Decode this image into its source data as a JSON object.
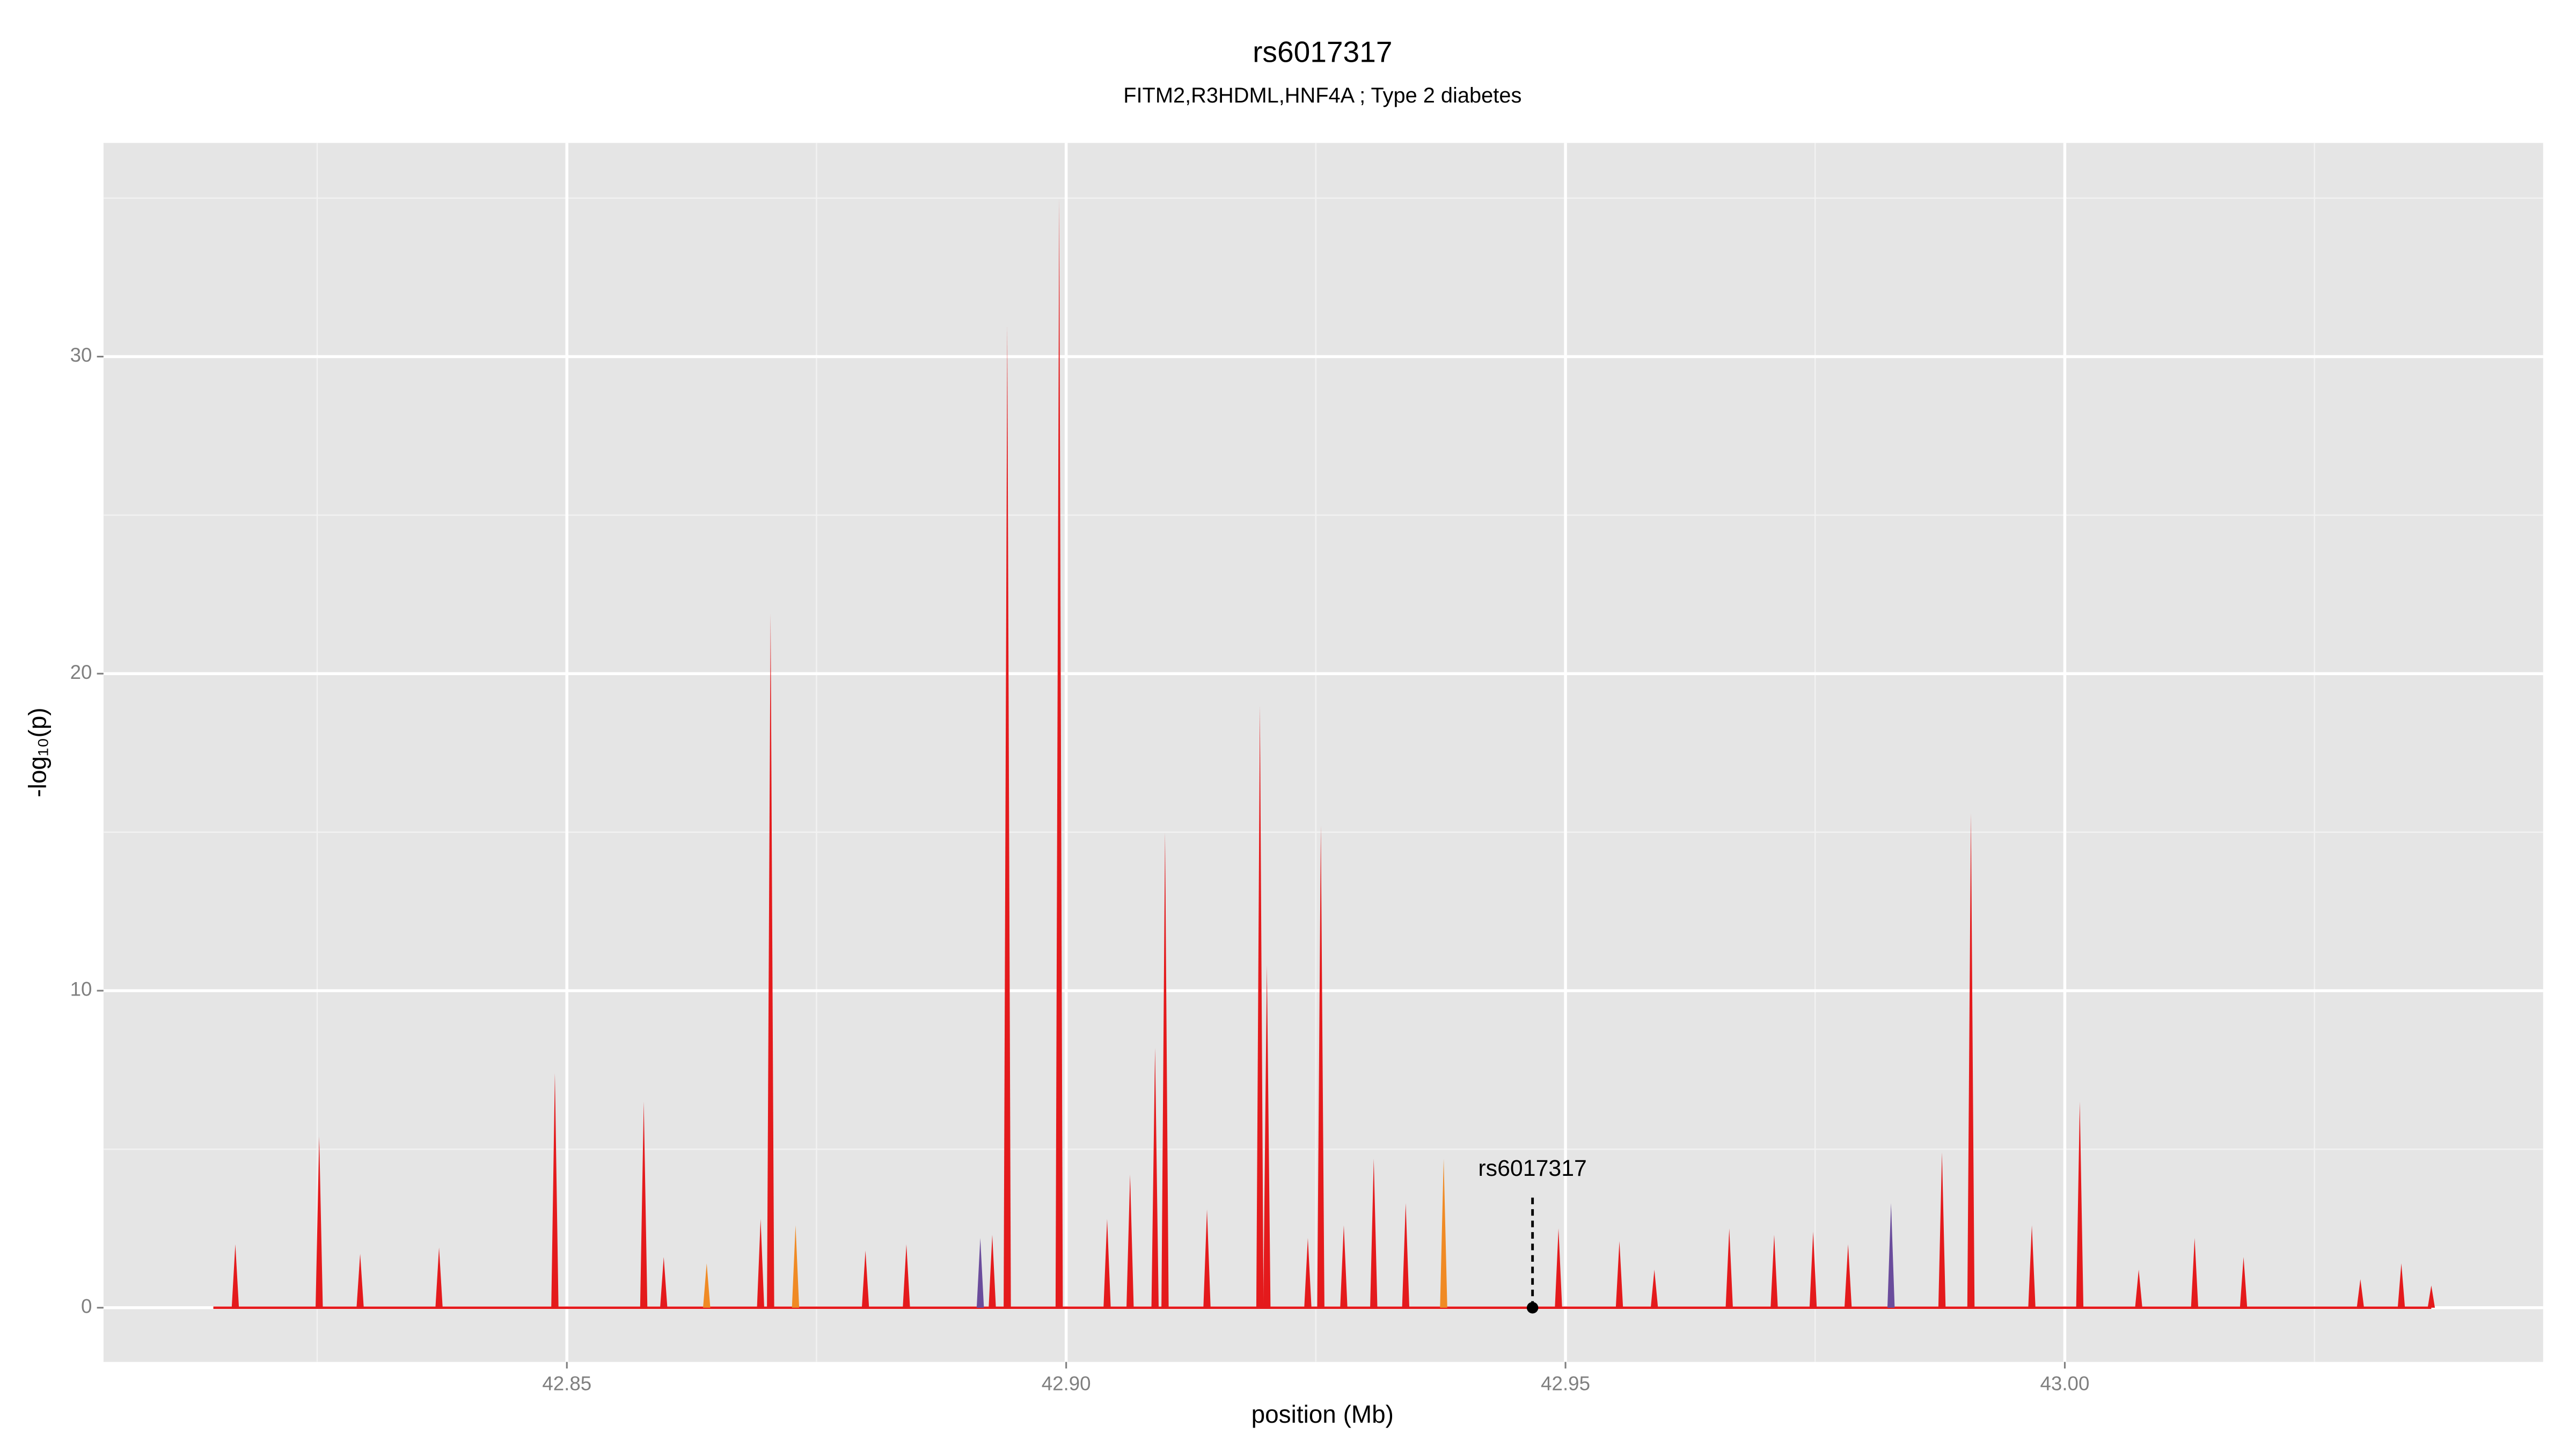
{
  "chart_data": {
    "type": "spike",
    "title": "rs6017317",
    "subtitle": "FITM2,R3HDML,HNF4A ; Type 2 diabetes",
    "x_label": "position (Mb)",
    "y_label": "-log₁₀(p)",
    "xlim": [
      42.8036,
      43.0479
    ],
    "ylim": [
      -1.71,
      36.74
    ],
    "xticks": [
      {
        "value": 42.85,
        "label": "42.85"
      },
      {
        "value": 42.9,
        "label": "42.90"
      },
      {
        "value": 42.95,
        "label": "42.95"
      },
      {
        "value": 43.0,
        "label": "43.00"
      }
    ],
    "yticks": [
      0,
      10,
      20,
      30
    ],
    "x_minor_ticks": [
      42.825,
      42.875,
      42.925,
      42.975,
      43.025
    ],
    "y_minor_ticks": [
      5,
      15,
      25,
      35
    ],
    "grid": true,
    "baseline": {
      "x": [
        42.8146,
        43.0367
      ],
      "color": "#e41a1c"
    },
    "series": [
      {
        "color": "#e41a1c",
        "x": [
          42.8168,
          42.8252,
          42.8293,
          42.8372,
          42.8488,
          42.8577,
          42.8597,
          42.8694,
          42.8704,
          42.8799,
          42.884,
          42.8926,
          42.8941,
          42.8993,
          42.9041,
          42.9064,
          42.9089,
          42.9099,
          42.9141,
          42.9194,
          42.9201,
          42.9242,
          42.9255,
          42.9278,
          42.9308,
          42.934,
          42.9493,
          42.9554,
          42.9589,
          42.9664,
          42.9709,
          42.9748,
          42.9783,
          42.9877,
          42.9906,
          42.9967,
          43.0015,
          43.0074,
          43.013,
          43.0179,
          43.0296,
          43.0337,
          43.0367
        ],
        "values": [
          2,
          5.4,
          1.7,
          1.9,
          7.4,
          6.5,
          1.6,
          2.8,
          21.9,
          1.8,
          2.0,
          2.3,
          31,
          35,
          2.8,
          4.2,
          8.2,
          15,
          3.1,
          19,
          10.8,
          2.2,
          15.2,
          2.6,
          4.7,
          3.3,
          2.5,
          2.1,
          1.2,
          2.5,
          2.3,
          2.4,
          2.0,
          4.9,
          15.6,
          2.6,
          6.5,
          1.2,
          2.2,
          1.6,
          0.9,
          1.4,
          0.7
        ]
      },
      {
        "color": "#f08a24",
        "x": [
          42.864,
          42.8729,
          42.9378
        ],
        "values": [
          1.4,
          2.6,
          4.7
        ]
      },
      {
        "color": "#6a4c9c",
        "x": [
          42.8914,
          42.9826
        ],
        "values": [
          2.2,
          3.3
        ]
      }
    ],
    "annotation": {
      "text": "rs6017317",
      "x": 42.9467,
      "y": 0
    }
  }
}
